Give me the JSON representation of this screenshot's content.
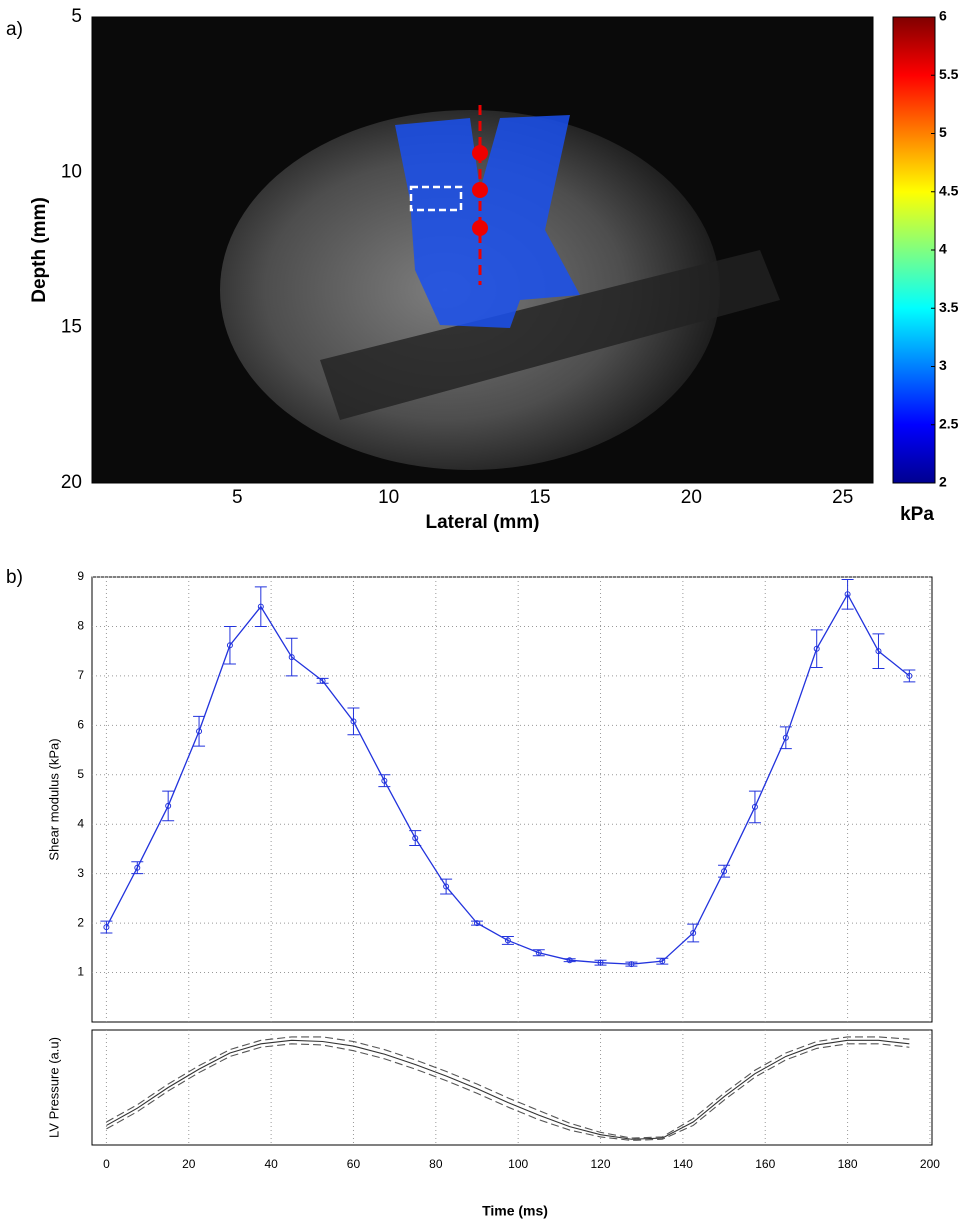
{
  "panel_labels": [
    "a)",
    "b)"
  ],
  "chart_data": [
    {
      "type": "image",
      "ylabel": "Depth (mm)",
      "xlabel": "Lateral (mm)",
      "xlim": [
        0.2,
        26
      ],
      "ylim": [
        20,
        5
      ],
      "xticks": [
        5,
        10,
        15,
        20,
        25
      ],
      "yticks": [
        5,
        10,
        15,
        20
      ],
      "colorbar": {
        "label": "kPa",
        "clim": [
          2,
          6
        ],
        "ticks": [
          2,
          2.5,
          3,
          3.5,
          4,
          4.5,
          5,
          5.5,
          6
        ],
        "colormap": [
          "#00008f",
          "#0000ff",
          "#0080ff",
          "#00ffff",
          "#80ff80",
          "#ffff00",
          "#ff8000",
          "#ff0000",
          "#800000"
        ]
      }
    },
    {
      "type": "errorbar",
      "ylabel": "Shear modulus (kPa)",
      "xlim": [
        -3.5,
        200.5
      ],
      "ylim": [
        0,
        9
      ],
      "xticks": [
        0,
        20,
        40,
        60,
        80,
        100,
        120,
        140,
        160,
        180,
        200
      ],
      "yticks": [
        1,
        2,
        3,
        4,
        5,
        6,
        7,
        8,
        9
      ],
      "grid": true,
      "color": "#2233dd",
      "x": [
        0,
        7.5,
        15,
        22.5,
        30,
        37.5,
        45,
        52.5,
        60,
        67.5,
        75,
        82.5,
        90,
        97.5,
        105,
        112.5,
        120,
        127.5,
        135,
        142.5,
        150,
        157.5,
        165,
        172.5,
        180,
        187.5,
        195
      ],
      "values": [
        1.92,
        3.12,
        4.37,
        5.88,
        7.62,
        8.4,
        7.38,
        6.9,
        6.08,
        4.88,
        3.72,
        2.74,
        2.0,
        1.65,
        1.4,
        1.25,
        1.2,
        1.17,
        1.23,
        1.8,
        3.05,
        4.35,
        5.75,
        7.55,
        8.65,
        7.5,
        7.0
      ],
      "errors": [
        0.12,
        0.12,
        0.3,
        0.3,
        0.38,
        0.4,
        0.38,
        0.05,
        0.27,
        0.12,
        0.15,
        0.15,
        0.04,
        0.08,
        0.06,
        0.03,
        0.05,
        0.04,
        0.06,
        0.18,
        0.12,
        0.32,
        0.22,
        0.38,
        0.3,
        0.35,
        0.12
      ]
    },
    {
      "type": "line",
      "ylabel": "LV Pressure (a.u)",
      "xlabel": "Time (ms)",
      "xlim": [
        -3.5,
        200.5
      ],
      "ylim": [
        0,
        1
      ],
      "xticks": [
        0,
        20,
        40,
        60,
        80,
        100,
        120,
        140,
        160,
        180,
        200
      ],
      "grid": true,
      "x": [
        0,
        7.5,
        15,
        22.5,
        30,
        37.5,
        45,
        52.5,
        60,
        67.5,
        75,
        82.5,
        90,
        97.5,
        105,
        112.5,
        120,
        127.5,
        135,
        142.5,
        150,
        157.5,
        165,
        172.5,
        180,
        187.5,
        195
      ],
      "series": [
        {
          "style": "solid",
          "color": "#333333",
          "values": [
            0.17,
            0.32,
            0.5,
            0.66,
            0.8,
            0.88,
            0.91,
            0.9,
            0.86,
            0.79,
            0.7,
            0.6,
            0.49,
            0.37,
            0.26,
            0.16,
            0.09,
            0.05,
            0.06,
            0.2,
            0.42,
            0.62,
            0.77,
            0.87,
            0.91,
            0.91,
            0.88
          ]
        },
        {
          "style": "dashed",
          "color": "#555555",
          "values": [
            0.2,
            0.35,
            0.53,
            0.69,
            0.83,
            0.91,
            0.94,
            0.94,
            0.9,
            0.83,
            0.74,
            0.64,
            0.53,
            0.41,
            0.3,
            0.19,
            0.11,
            0.06,
            0.07,
            0.23,
            0.45,
            0.65,
            0.8,
            0.9,
            0.94,
            0.94,
            0.92
          ]
        },
        {
          "style": "dashed",
          "color": "#555555",
          "values": [
            0.14,
            0.29,
            0.47,
            0.63,
            0.77,
            0.85,
            0.88,
            0.87,
            0.82,
            0.75,
            0.66,
            0.56,
            0.45,
            0.33,
            0.22,
            0.13,
            0.07,
            0.04,
            0.05,
            0.17,
            0.39,
            0.59,
            0.74,
            0.84,
            0.88,
            0.88,
            0.85
          ]
        }
      ]
    }
  ]
}
